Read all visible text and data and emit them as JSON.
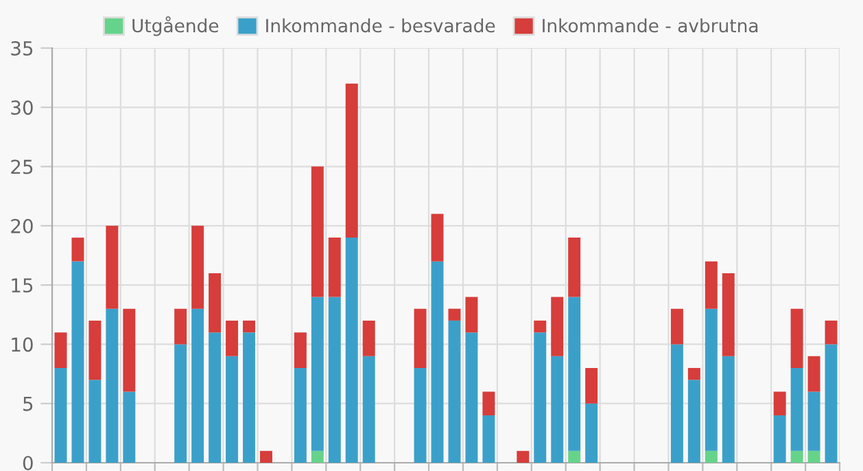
{
  "chart_data": {
    "type": "bar",
    "stacked": true,
    "categories": [
      null,
      null,
      null,
      null,
      null,
      null,
      null,
      null,
      null,
      null,
      null,
      null,
      null,
      null,
      null,
      null,
      null,
      null,
      null,
      null,
      null,
      null,
      null,
      null,
      null,
      null,
      null,
      null,
      null,
      null,
      null,
      null,
      null,
      null,
      null,
      null,
      null,
      null,
      null,
      null,
      null,
      null,
      null,
      null,
      null,
      null
    ],
    "series": [
      {
        "name": "Utgående",
        "color": "#66d38a",
        "values": [
          0,
          0,
          0,
          0,
          0,
          0,
          0,
          0,
          0,
          0,
          0,
          0,
          0,
          0,
          0,
          1,
          0,
          0,
          0,
          0,
          0,
          0,
          0,
          0,
          0,
          0,
          0,
          0,
          0,
          0,
          1,
          0,
          0,
          0,
          0,
          0,
          0,
          0,
          1,
          0,
          0,
          0,
          0,
          1,
          1,
          0
        ]
      },
      {
        "name": "Inkommande - besvarade",
        "color": "#3ba0c9",
        "values": [
          8,
          17,
          7,
          13,
          6,
          0,
          0,
          10,
          13,
          11,
          9,
          11,
          0,
          0,
          8,
          13,
          14,
          19,
          9,
          0,
          0,
          8,
          17,
          12,
          11,
          4,
          0,
          0,
          11,
          9,
          13,
          5,
          0,
          0,
          0,
          0,
          10,
          7,
          12,
          9,
          0,
          0,
          4,
          7,
          5,
          10
        ]
      },
      {
        "name": "Inkommande - avbrutna",
        "color": "#d63d3b",
        "values": [
          3,
          2,
          5,
          7,
          7,
          0,
          0,
          3,
          7,
          5,
          3,
          1,
          1,
          0,
          3,
          11,
          5,
          13,
          3,
          0,
          0,
          5,
          4,
          1,
          3,
          2,
          0,
          1,
          1,
          5,
          5,
          3,
          0,
          0,
          0,
          0,
          3,
          1,
          4,
          7,
          0,
          0,
          2,
          5,
          3,
          2
        ]
      }
    ],
    "ylim": [
      0,
      35
    ],
    "yticks": [
      0,
      5,
      10,
      15,
      20,
      25,
      30,
      35
    ],
    "grid": true,
    "legend": "top",
    "tick_labels": "y"
  }
}
